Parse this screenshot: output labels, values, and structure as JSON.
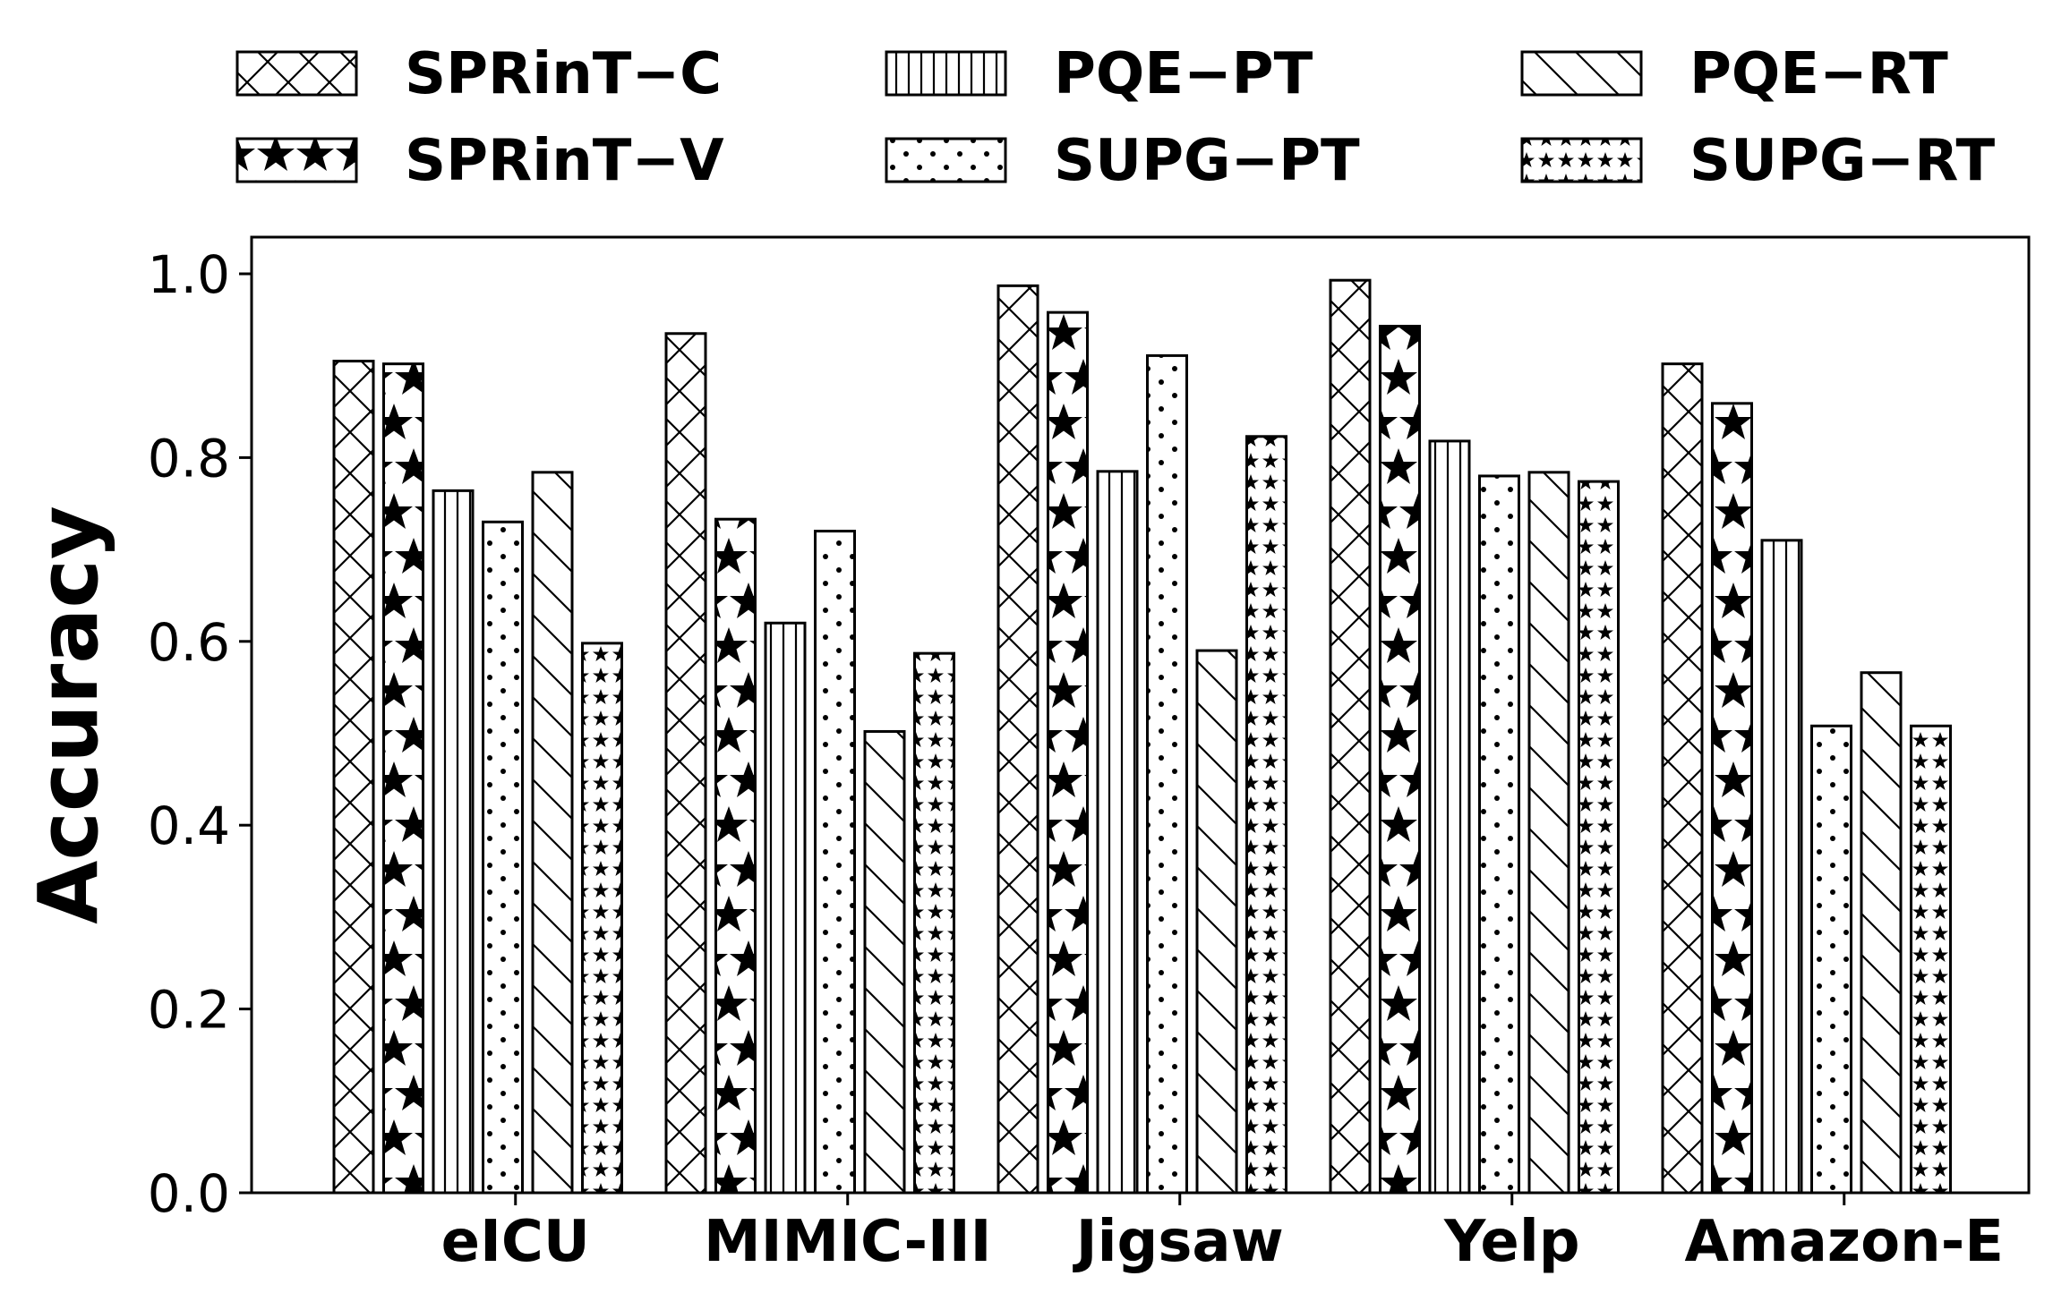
{
  "chart_data": {
    "type": "bar",
    "title": "",
    "xlabel": "",
    "ylabel": "Accuracy",
    "ylim": [
      0,
      1.04
    ],
    "yticks": [
      "0.0",
      "0.2",
      "0.4",
      "0.6",
      "0.8",
      "1.0"
    ],
    "grid": false,
    "legend_position": "top",
    "categories": [
      "eICU",
      "MIMIC-III",
      "Jigsaw",
      "Yelp",
      "Amazon-E"
    ],
    "series": [
      {
        "name": "SPRinT−C",
        "pattern": "crosshatch-icon",
        "values": [
          0.905,
          0.935,
          0.987,
          0.993,
          0.902
        ]
      },
      {
        "name": "SPRinT−V",
        "pattern": "large-stars-icon",
        "values": [
          0.902,
          0.733,
          0.958,
          0.943,
          0.859
        ]
      },
      {
        "name": "PQE−PT",
        "pattern": "vertical-lines-icon",
        "values": [
          0.764,
          0.62,
          0.785,
          0.818,
          0.71
        ]
      },
      {
        "name": "SUPG−PT",
        "pattern": "dots-icon",
        "values": [
          0.73,
          0.72,
          0.911,
          0.78,
          0.508
        ]
      },
      {
        "name": "PQE−RT",
        "pattern": "diagonal-lines-icon",
        "values": [
          0.784,
          0.502,
          0.59,
          0.784,
          0.566
        ]
      },
      {
        "name": "SUPG−RT",
        "pattern": "small-stars-icon",
        "values": [
          0.598,
          0.587,
          0.823,
          0.774,
          0.508
        ]
      }
    ],
    "colors": {
      "bar_fill": "#ffffff",
      "stroke": "#000000"
    }
  }
}
